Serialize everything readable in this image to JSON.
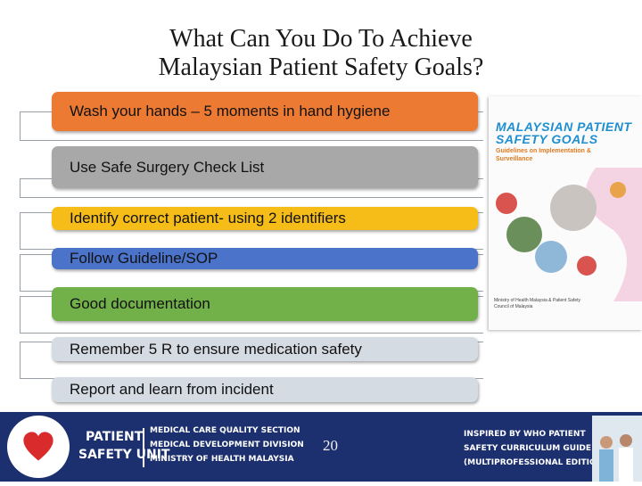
{
  "title_line1": "What Can You Do To Achieve",
  "title_line2": "Malaysian Patient Safety Goals?",
  "items": [
    {
      "label": "Wash your hands – 5 moments in hand hygiene",
      "color": "#ec7a33"
    },
    {
      "label": "Use Safe Surgery Check List",
      "color": "#a8a8a8"
    },
    {
      "label": "Identify correct patient- using 2 identifiers",
      "color": "#f6bd19"
    },
    {
      "label": "Follow Guideline/SOP",
      "color": "#4a73c9"
    },
    {
      "label": "Good  documentation",
      "color": "#72b04a"
    },
    {
      "label": "Remember 5 R  to ensure medication safety",
      "color": "#d5dbe3"
    },
    {
      "label": "Report and learn from incident",
      "color": "#d5dbe3"
    }
  ],
  "book": {
    "title_line1": "MALAYSIAN PATIENT",
    "title_line2": "SAFETY GOALS",
    "subtitle": "Guidelines on Implementation & Surveillance",
    "publisher": "Ministry of Health Malaysia & Patient Safety Council of Malaysia"
  },
  "footer": {
    "unit_line1": "PATIENT",
    "unit_line2": "SAFETY UNIT",
    "section_line1": "MEDICAL CARE QUALITY SECTION",
    "section_line2": "MEDICAL DEVELOPMENT DIVISION",
    "section_line3": "MINISTRY OF HEALTH MALAYSIA",
    "page_number": "20",
    "inspired_line1": "INSPIRED BY WHO PATIENT",
    "inspired_line2": "SAFETY CURRICULUM GUIDE",
    "inspired_line3": "(MULTIPROFESSIONAL EDITION)",
    "colors": {
      "bar": "#1c2f6e",
      "heart": "#d92b2b"
    }
  }
}
